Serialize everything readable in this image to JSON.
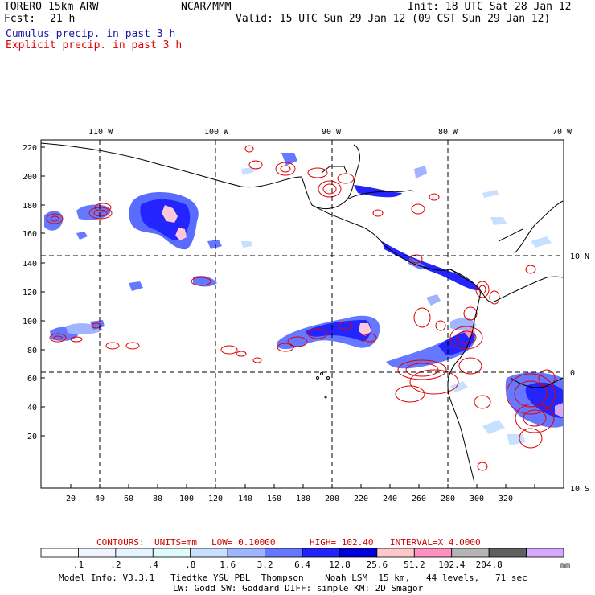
{
  "header": {
    "model": "TORERO",
    "model_desc": "15km ARW",
    "org": "NCAR/MMM",
    "init": "Init: 18 UTC Sat 28 Jan 12",
    "fcst_label": "Fcst:",
    "fcst_value": "21 h",
    "valid": "Valid: 15 UTC Sun 29 Jan 12 (09 CST Sun 29 Jan 12)",
    "legend_cumulus": "Cumulus precip. in past 3 h",
    "legend_explicit": "Explicit precip. in past 3 h"
  },
  "map": {
    "lon_labels": [
      "110 W",
      "100 W",
      "90 W",
      "80 W",
      "70 W"
    ],
    "lat_labels": [
      "10 N",
      "0",
      "10 S"
    ],
    "y_ticks": [
      "220",
      "200",
      "180",
      "160",
      "140",
      "120",
      "100",
      "80",
      "60",
      "40",
      "20"
    ],
    "x_ticks": [
      "20",
      "40",
      "60",
      "80",
      "100",
      "120",
      "140",
      "160",
      "180",
      "200",
      "220",
      "240",
      "260",
      "280",
      "300",
      "320"
    ],
    "colors": {
      "cumulus": "#1a1ae6",
      "explicit_contour": "#e00000",
      "coast": "#000000"
    }
  },
  "contours_line": {
    "label": "CONTOURS:",
    "units": "UNITS=mm",
    "low": "LOW= 0.10000",
    "high": "HIGH= 102.40",
    "interval": "INTERVAL=X 4.0000"
  },
  "colorbar": {
    "labels": [
      ".1",
      ".2",
      ".4",
      ".8",
      "1.6",
      "3.2",
      "6.4",
      "12.8",
      "25.6",
      "51.2",
      "102.4",
      "204.8"
    ],
    "unit": "mm",
    "colors": [
      "#ffffff",
      "#f0f4ff",
      "#e6f4ff",
      "#e0fbfb",
      "#c8e0ff",
      "#a0b4ff",
      "#6678ff",
      "#2222ff",
      "#0000d8",
      "#ffc8c8",
      "#ff90c0",
      "#b4b4b4",
      "#606060",
      "#d8a8ff"
    ]
  },
  "footer": {
    "line1": "Model Info: V3.3.1   Tiedtke YSU PBL  Thompson    Noah LSM  15 km,   44 levels,   71 sec",
    "line2": "LW: Godd SW: Goddard DIFF: simple KM: 2D Smagor"
  }
}
